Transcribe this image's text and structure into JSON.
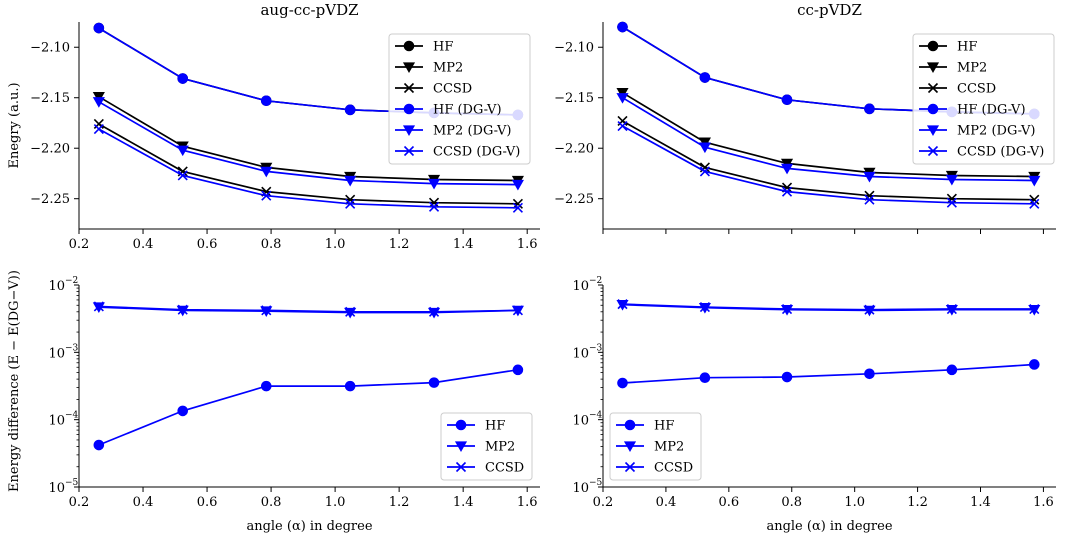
{
  "chart_data": [
    {
      "type": "line",
      "title": "aug-cc-pVDZ",
      "xlabel": "",
      "ylabel": "Enegry (a.u.)",
      "xlim": [
        0.2,
        1.64
      ],
      "ylim": [
        -2.28,
        -2.075
      ],
      "x_ticks": [
        0.2,
        0.4,
        0.6,
        0.8,
        1.0,
        1.2,
        1.4,
        1.6
      ],
      "x_tick_labels": [
        "0.2",
        "0.4",
        "0.6",
        "0.8",
        "1.0",
        "1.2",
        "1.4",
        "1.6"
      ],
      "y_ticks": [
        -2.25,
        -2.2,
        -2.15,
        -2.1
      ],
      "y_tick_labels": [
        "−2.25",
        "−2.20",
        "−2.15",
        "−2.10"
      ],
      "y_scale": "linear",
      "legend_position": "top-right",
      "x": [
        0.262,
        0.524,
        0.785,
        1.047,
        1.309,
        1.571
      ],
      "series": [
        {
          "name": "HF",
          "color": "#000000",
          "marker": "circle",
          "values": [
            -2.081,
            -2.131,
            -2.153,
            -2.162,
            -2.165,
            -2.167
          ]
        },
        {
          "name": "MP2",
          "color": "#000000",
          "marker": "triangle-down",
          "values": [
            -2.149,
            -2.198,
            -2.219,
            -2.228,
            -2.231,
            -2.232
          ]
        },
        {
          "name": "CCSD",
          "color": "#000000",
          "marker": "x",
          "values": [
            -2.176,
            -2.223,
            -2.243,
            -2.251,
            -2.254,
            -2.255
          ]
        },
        {
          "name": "HF (DG-V)",
          "color": "#0000ff",
          "marker": "circle",
          "values": [
            -2.081,
            -2.131,
            -2.153,
            -2.162,
            -2.165,
            -2.167
          ]
        },
        {
          "name": "MP2 (DG-V)",
          "color": "#0000ff",
          "marker": "triangle-down",
          "values": [
            -2.154,
            -2.202,
            -2.223,
            -2.232,
            -2.235,
            -2.236
          ]
        },
        {
          "name": "CCSD (DG-V)",
          "color": "#0000ff",
          "marker": "x",
          "values": [
            -2.181,
            -2.227,
            -2.247,
            -2.255,
            -2.258,
            -2.259
          ]
        }
      ]
    },
    {
      "type": "line",
      "title": "cc-pVDZ",
      "xlabel": "",
      "ylabel": "",
      "xlim": [
        0.2,
        1.64
      ],
      "ylim": [
        -2.28,
        -2.075
      ],
      "x_ticks": [
        0.2,
        0.4,
        0.6,
        0.8,
        1.0,
        1.2,
        1.4,
        1.6
      ],
      "x_tick_labels": [],
      "y_ticks": [
        -2.25,
        -2.2,
        -2.15,
        -2.1
      ],
      "y_tick_labels": [
        "−2.25",
        "−2.20",
        "−2.15",
        "−2.10"
      ],
      "y_scale": "linear",
      "legend_position": "top-right",
      "x": [
        0.262,
        0.524,
        0.785,
        1.047,
        1.309,
        1.571
      ],
      "series": [
        {
          "name": "HF",
          "color": "#000000",
          "marker": "circle",
          "values": [
            -2.08,
            -2.13,
            -2.152,
            -2.161,
            -2.164,
            -2.166
          ]
        },
        {
          "name": "MP2",
          "color": "#000000",
          "marker": "triangle-down",
          "values": [
            -2.145,
            -2.194,
            -2.215,
            -2.224,
            -2.227,
            -2.228
          ]
        },
        {
          "name": "CCSD",
          "color": "#000000",
          "marker": "x",
          "values": [
            -2.173,
            -2.219,
            -2.239,
            -2.247,
            -2.25,
            -2.251
          ]
        },
        {
          "name": "HF (DG-V)",
          "color": "#0000ff",
          "marker": "circle",
          "values": [
            -2.08,
            -2.13,
            -2.152,
            -2.161,
            -2.164,
            -2.166
          ]
        },
        {
          "name": "MP2 (DG-V)",
          "color": "#0000ff",
          "marker": "triangle-down",
          "values": [
            -2.15,
            -2.199,
            -2.22,
            -2.228,
            -2.231,
            -2.232
          ]
        },
        {
          "name": "CCSD (DG-V)",
          "color": "#0000ff",
          "marker": "x",
          "values": [
            -2.178,
            -2.223,
            -2.243,
            -2.251,
            -2.254,
            -2.255
          ]
        }
      ]
    },
    {
      "type": "line",
      "title": "",
      "xlabel": "angle (α) in degree",
      "ylabel": "Energy difference (E − E(DG−V))",
      "xlim": [
        0.2,
        1.64
      ],
      "ylim": [
        1e-05,
        0.01
      ],
      "x_ticks": [
        0.2,
        0.4,
        0.6,
        0.8,
        1.0,
        1.2,
        1.4,
        1.6
      ],
      "x_tick_labels": [
        "0.2",
        "0.4",
        "0.6",
        "0.8",
        "1.0",
        "1.2",
        "1.4",
        "1.6"
      ],
      "y_ticks": [
        1e-05,
        0.0001,
        0.001,
        0.01
      ],
      "y_tick_labels": [
        "10",
        "10",
        "10",
        "10"
      ],
      "y_tick_exponents": [
        "−5",
        "−4",
        "−3",
        "−2"
      ],
      "y_scale": "log",
      "legend_position": "bottom-right",
      "x": [
        0.262,
        0.524,
        0.785,
        1.047,
        1.309,
        1.571
      ],
      "series": [
        {
          "name": "HF",
          "color": "#0000ff",
          "marker": "circle",
          "values": [
            4.2e-05,
            0.000135,
            0.000315,
            0.000315,
            0.000355,
            0.00055
          ]
        },
        {
          "name": "MP2",
          "color": "#0000ff",
          "marker": "triangle-down",
          "values": [
            0.0047,
            0.0042,
            0.0041,
            0.0039,
            0.0039,
            0.0042
          ]
        },
        {
          "name": "CCSD",
          "color": "#0000ff",
          "marker": "x",
          "values": [
            0.0048,
            0.0043,
            0.0042,
            0.004,
            0.004,
            0.0042
          ]
        }
      ]
    },
    {
      "type": "line",
      "title": "",
      "xlabel": "angle (α) in degree",
      "ylabel": "",
      "xlim": [
        0.2,
        1.64
      ],
      "ylim": [
        1e-05,
        0.01
      ],
      "x_ticks": [
        0.2,
        0.4,
        0.6,
        0.8,
        1.0,
        1.2,
        1.4,
        1.6
      ],
      "x_tick_labels": [
        "0.2",
        "0.4",
        "0.6",
        "0.8",
        "1.0",
        "1.2",
        "1.4",
        "1.6"
      ],
      "y_ticks": [
        1e-05,
        0.0001,
        0.001,
        0.01
      ],
      "y_tick_labels": [
        "10",
        "10",
        "10",
        "10"
      ],
      "y_tick_exponents": [
        "−5",
        "−4",
        "−3",
        "−2"
      ],
      "y_scale": "log",
      "legend_position": "bottom-left",
      "x": [
        0.262,
        0.524,
        0.785,
        1.047,
        1.309,
        1.571
      ],
      "series": [
        {
          "name": "HF",
          "color": "#0000ff",
          "marker": "circle",
          "values": [
            0.00035,
            0.00042,
            0.00043,
            0.00048,
            0.00055,
            0.00066
          ]
        },
        {
          "name": "MP2",
          "color": "#0000ff",
          "marker": "triangle-down",
          "values": [
            0.0051,
            0.0046,
            0.0043,
            0.0042,
            0.0043,
            0.0043
          ]
        },
        {
          "name": "CCSD",
          "color": "#0000ff",
          "marker": "x",
          "values": [
            0.0052,
            0.0047,
            0.0044,
            0.0043,
            0.0044,
            0.0044
          ]
        }
      ]
    }
  ]
}
